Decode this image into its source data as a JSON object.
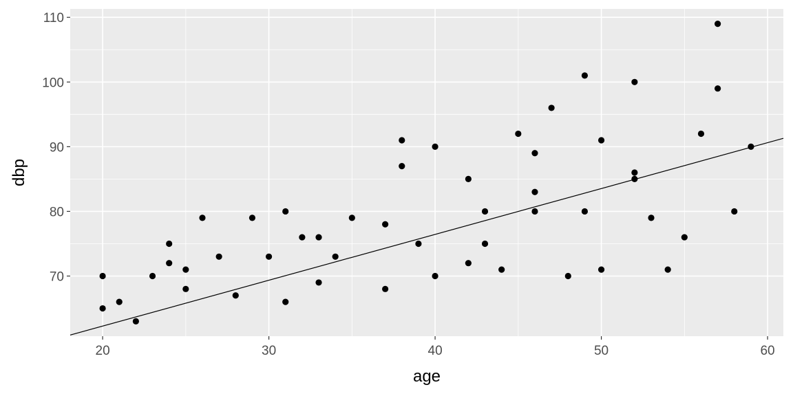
{
  "chart_data": {
    "type": "scatter",
    "xlabel": "age",
    "ylabel": "dbp",
    "xlim": [
      18.05,
      60.95
    ],
    "ylim": [
      60.7,
      111.3
    ],
    "x_ticks": [
      20,
      30,
      40,
      50,
      60
    ],
    "y_ticks": [
      70,
      80,
      90,
      100,
      110
    ],
    "x_tick_labels": [
      "20",
      "30",
      "40",
      "50",
      "60"
    ],
    "y_tick_labels": [
      "70",
      "80",
      "90",
      "100",
      "110"
    ],
    "grid": true,
    "legend": "none",
    "panel_background": "#ebebeb",
    "grid_color": "#ffffff",
    "point_color": "#000000",
    "line_color": "#000000",
    "points": [
      {
        "x": 20,
        "y": 70
      },
      {
        "x": 20,
        "y": 65
      },
      {
        "x": 21,
        "y": 66
      },
      {
        "x": 22,
        "y": 63
      },
      {
        "x": 23,
        "y": 70
      },
      {
        "x": 24,
        "y": 75
      },
      {
        "x": 24,
        "y": 72
      },
      {
        "x": 25,
        "y": 71
      },
      {
        "x": 25,
        "y": 68
      },
      {
        "x": 26,
        "y": 79
      },
      {
        "x": 27,
        "y": 73
      },
      {
        "x": 28,
        "y": 67
      },
      {
        "x": 29,
        "y": 79
      },
      {
        "x": 30,
        "y": 73
      },
      {
        "x": 31,
        "y": 80
      },
      {
        "x": 31,
        "y": 66
      },
      {
        "x": 32,
        "y": 76
      },
      {
        "x": 33,
        "y": 76
      },
      {
        "x": 33,
        "y": 69
      },
      {
        "x": 34,
        "y": 73
      },
      {
        "x": 35,
        "y": 79
      },
      {
        "x": 37,
        "y": 78
      },
      {
        "x": 37,
        "y": 68
      },
      {
        "x": 38,
        "y": 91
      },
      {
        "x": 38,
        "y": 87
      },
      {
        "x": 39,
        "y": 75
      },
      {
        "x": 40,
        "y": 90
      },
      {
        "x": 40,
        "y": 70
      },
      {
        "x": 42,
        "y": 85
      },
      {
        "x": 42,
        "y": 72
      },
      {
        "x": 43,
        "y": 80
      },
      {
        "x": 43,
        "y": 75
      },
      {
        "x": 44,
        "y": 71
      },
      {
        "x": 45,
        "y": 92
      },
      {
        "x": 46,
        "y": 89
      },
      {
        "x": 46,
        "y": 83
      },
      {
        "x": 46,
        "y": 80
      },
      {
        "x": 47,
        "y": 96
      },
      {
        "x": 48,
        "y": 70
      },
      {
        "x": 49,
        "y": 101
      },
      {
        "x": 49,
        "y": 80
      },
      {
        "x": 50,
        "y": 91
      },
      {
        "x": 50,
        "y": 71
      },
      {
        "x": 52,
        "y": 100
      },
      {
        "x": 52,
        "y": 86
      },
      {
        "x": 52,
        "y": 85
      },
      {
        "x": 53,
        "y": 79
      },
      {
        "x": 54,
        "y": 71
      },
      {
        "x": 55,
        "y": 76
      },
      {
        "x": 56,
        "y": 92
      },
      {
        "x": 57,
        "y": 109
      },
      {
        "x": 57,
        "y": 99
      },
      {
        "x": 58,
        "y": 80
      },
      {
        "x": 59,
        "y": 90
      }
    ],
    "fit_line": {
      "type": "linear",
      "intercept": 48.08,
      "slope": 0.709
    }
  }
}
